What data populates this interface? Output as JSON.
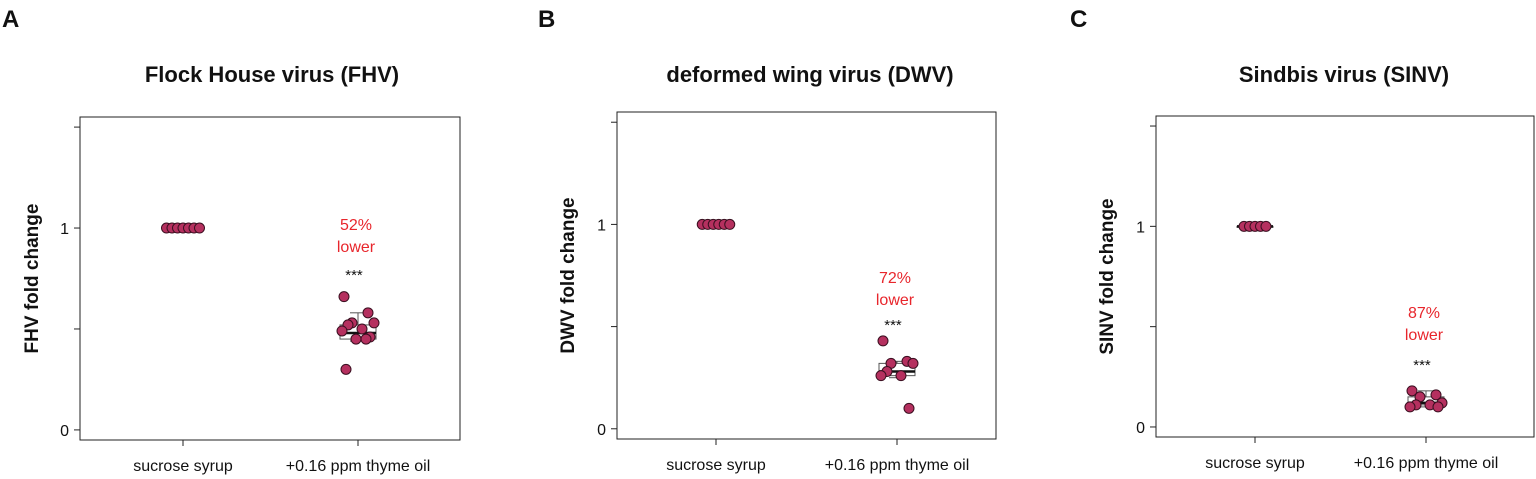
{
  "colors": {
    "point_fill": "#b5305f",
    "point_stroke": "#3a0f20",
    "annotation": "#e8262c",
    "axis": "#222222"
  },
  "chart_data": [
    {
      "type": "box-scatter",
      "panel_label": "A",
      "title": "Flock House virus (FHV)",
      "xlabel": "",
      "ylabel": "FHV fold change",
      "categories": [
        "sucrose syrup",
        "+0.16 ppm thyme oil"
      ],
      "ylim": [
        -0.05,
        1.55
      ],
      "yticks": [
        "0",
        "1"
      ],
      "series": [
        {
          "category": "sucrose syrup",
          "values": [
            1,
            1,
            1,
            1,
            1,
            1,
            1
          ],
          "box": {
            "q1": 1,
            "median": 1,
            "q3": 1,
            "whisker_low": 1,
            "whisker_high": 1
          }
        },
        {
          "category": "+0.16 ppm thyme oil",
          "values": [
            0.66,
            0.58,
            0.53,
            0.53,
            0.52,
            0.5,
            0.49,
            0.46,
            0.45,
            0.45,
            0.3
          ],
          "box": {
            "q1": 0.45,
            "median": 0.48,
            "q3": 0.52,
            "whisker_low": 0.44,
            "whisker_high": 0.58
          }
        }
      ],
      "annotations": {
        "percent": "52%",
        "word": "lower",
        "significance": "***"
      }
    },
    {
      "type": "box-scatter",
      "panel_label": "B",
      "title": "deformed wing virus (DWV)",
      "xlabel": "",
      "ylabel": "DWV fold change",
      "categories": [
        "sucrose syrup",
        "+0.16 ppm thyme oil"
      ],
      "ylim": [
        -0.05,
        1.55
      ],
      "yticks": [
        "0",
        "1"
      ],
      "series": [
        {
          "category": "sucrose syrup",
          "values": [
            1,
            1,
            1,
            1,
            1,
            1
          ],
          "box": {
            "q1": 1,
            "median": 1,
            "q3": 1,
            "whisker_low": 1,
            "whisker_high": 1
          }
        },
        {
          "category": "+0.16 ppm thyme oil",
          "values": [
            0.43,
            0.33,
            0.32,
            0.32,
            0.28,
            0.26,
            0.26,
            0.1
          ],
          "box": {
            "q1": 0.26,
            "median": 0.28,
            "q3": 0.32,
            "whisker_low": 0.25,
            "whisker_high": 0.33
          }
        }
      ],
      "annotations": {
        "percent": "72%",
        "word": "lower",
        "significance": "***"
      }
    },
    {
      "type": "box-scatter",
      "panel_label": "C",
      "title": "Sindbis virus (SINV)",
      "xlabel": "",
      "ylabel": "SINV fold change",
      "categories": [
        "sucrose syrup",
        "+0.16 ppm thyme oil"
      ],
      "ylim": [
        -0.05,
        1.55
      ],
      "yticks": [
        "0",
        "1"
      ],
      "series": [
        {
          "category": "sucrose syrup",
          "values": [
            1,
            1,
            1,
            1,
            1
          ],
          "box": {
            "q1": 1,
            "median": 1,
            "q3": 1,
            "whisker_low": 1,
            "whisker_high": 1
          }
        },
        {
          "category": "+0.16 ppm thyme oil",
          "values": [
            0.18,
            0.16,
            0.15,
            0.12,
            0.11,
            0.11,
            0.1,
            0.1
          ],
          "box": {
            "q1": 0.11,
            "median": 0.12,
            "q3": 0.15,
            "whisker_low": 0.1,
            "whisker_high": 0.18
          }
        }
      ],
      "annotations": {
        "percent": "87%",
        "word": "lower",
        "significance": "***"
      }
    }
  ]
}
